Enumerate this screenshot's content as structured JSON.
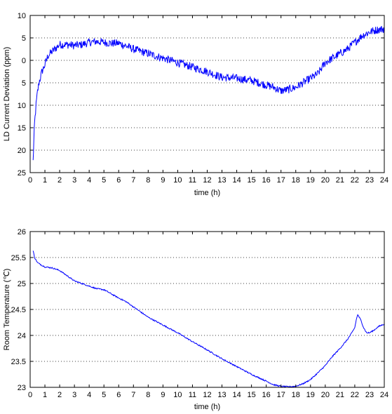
{
  "chart_data": [
    {
      "type": "line",
      "xlabel": "time (h)",
      "ylabel": "LD Current Deviation (ppm)",
      "xlim": [
        0,
        24
      ],
      "ylim": [
        -25,
        10
      ],
      "x_ticks": [
        0,
        1,
        2,
        3,
        4,
        5,
        6,
        7,
        8,
        9,
        10,
        11,
        12,
        13,
        14,
        15,
        16,
        17,
        18,
        19,
        20,
        21,
        22,
        23,
        24
      ],
      "y_ticks": [
        10,
        5,
        0,
        -5,
        -10,
        -15,
        -20,
        -25
      ],
      "y_tick_labels": [
        "10",
        "5",
        "0",
        "5",
        "10",
        "15",
        "20",
        "25"
      ],
      "grid": true,
      "series": [
        {
          "color": "#0000ff",
          "noise": 0.9,
          "x": [
            0.2,
            0.25,
            0.3,
            0.4,
            0.5,
            0.6,
            0.8,
            1.0,
            1.2,
            1.5,
            2.0,
            2.5,
            3.0,
            3.5,
            4.0,
            4.5,
            5.0,
            5.5,
            6.0,
            6.5,
            7.0,
            7.5,
            8.0,
            9.0,
            10.0,
            11.0,
            12.0,
            13.0,
            14.0,
            15.0,
            15.5,
            16.0,
            16.5,
            17.0,
            17.5,
            18.0,
            18.5,
            19.0,
            19.5,
            20.0,
            20.5,
            21.0,
            21.5,
            22.0,
            22.5,
            23.0,
            23.5,
            24.0
          ],
          "y": [
            -22.5,
            -18,
            -14,
            -10,
            -7,
            -5,
            -2.5,
            -1,
            1,
            2,
            3.5,
            3.5,
            3.3,
            3.5,
            4.0,
            4.2,
            4.0,
            3.8,
            3.8,
            3.2,
            2.5,
            2.0,
            1.5,
            0.5,
            -0.5,
            -1.5,
            -2.5,
            -3.8,
            -4.0,
            -4.5,
            -5.0,
            -5.5,
            -6.0,
            -6.8,
            -6.5,
            -6.0,
            -5.0,
            -4.0,
            -3.0,
            -0.5,
            0.5,
            1.5,
            2.5,
            4.0,
            5.5,
            6.3,
            6.8,
            7.0
          ]
        }
      ]
    },
    {
      "type": "line",
      "xlabel": "time (h)",
      "ylabel": "Room Temperature (℃)",
      "xlim": [
        0,
        24
      ],
      "ylim": [
        23,
        26
      ],
      "x_ticks": [
        0,
        1,
        2,
        3,
        4,
        5,
        6,
        7,
        8,
        9,
        10,
        11,
        12,
        13,
        14,
        15,
        16,
        17,
        18,
        19,
        20,
        21,
        22,
        23,
        24
      ],
      "y_ticks": [
        26,
        25.5,
        25,
        24.5,
        24,
        23.5,
        23
      ],
      "y_tick_labels": [
        "26",
        "25.5",
        "25",
        "24.5",
        "24",
        "23.5",
        "23"
      ],
      "grid": true,
      "series": [
        {
          "color": "#0000ff",
          "noise": 0.012,
          "x": [
            0.2,
            0.3,
            0.5,
            0.8,
            1.0,
            1.5,
            2.0,
            2.5,
            3.0,
            3.5,
            4.0,
            4.5,
            5.0,
            5.5,
            6.0,
            6.5,
            7.0,
            7.5,
            8.0,
            9.0,
            10.0,
            11.0,
            12.0,
            13.0,
            14.0,
            15.0,
            16.0,
            16.5,
            17.0,
            17.5,
            18.0,
            18.5,
            19.0,
            19.5,
            20.0,
            20.5,
            21.0,
            21.5,
            21.8,
            22.0,
            22.1,
            22.2,
            22.4,
            22.6,
            22.8,
            23.0,
            23.3,
            23.6,
            24.0
          ],
          "y": [
            25.63,
            25.5,
            25.4,
            25.35,
            25.32,
            25.3,
            25.25,
            25.15,
            25.05,
            25.0,
            24.95,
            24.9,
            24.88,
            24.8,
            24.72,
            24.65,
            24.55,
            24.45,
            24.35,
            24.2,
            24.05,
            23.88,
            23.72,
            23.55,
            23.4,
            23.25,
            23.12,
            23.05,
            23.02,
            23.01,
            23.02,
            23.07,
            23.15,
            23.28,
            23.42,
            23.6,
            23.75,
            23.92,
            24.05,
            24.15,
            24.3,
            24.4,
            24.3,
            24.15,
            24.05,
            24.05,
            24.1,
            24.17,
            24.22
          ]
        }
      ]
    }
  ]
}
